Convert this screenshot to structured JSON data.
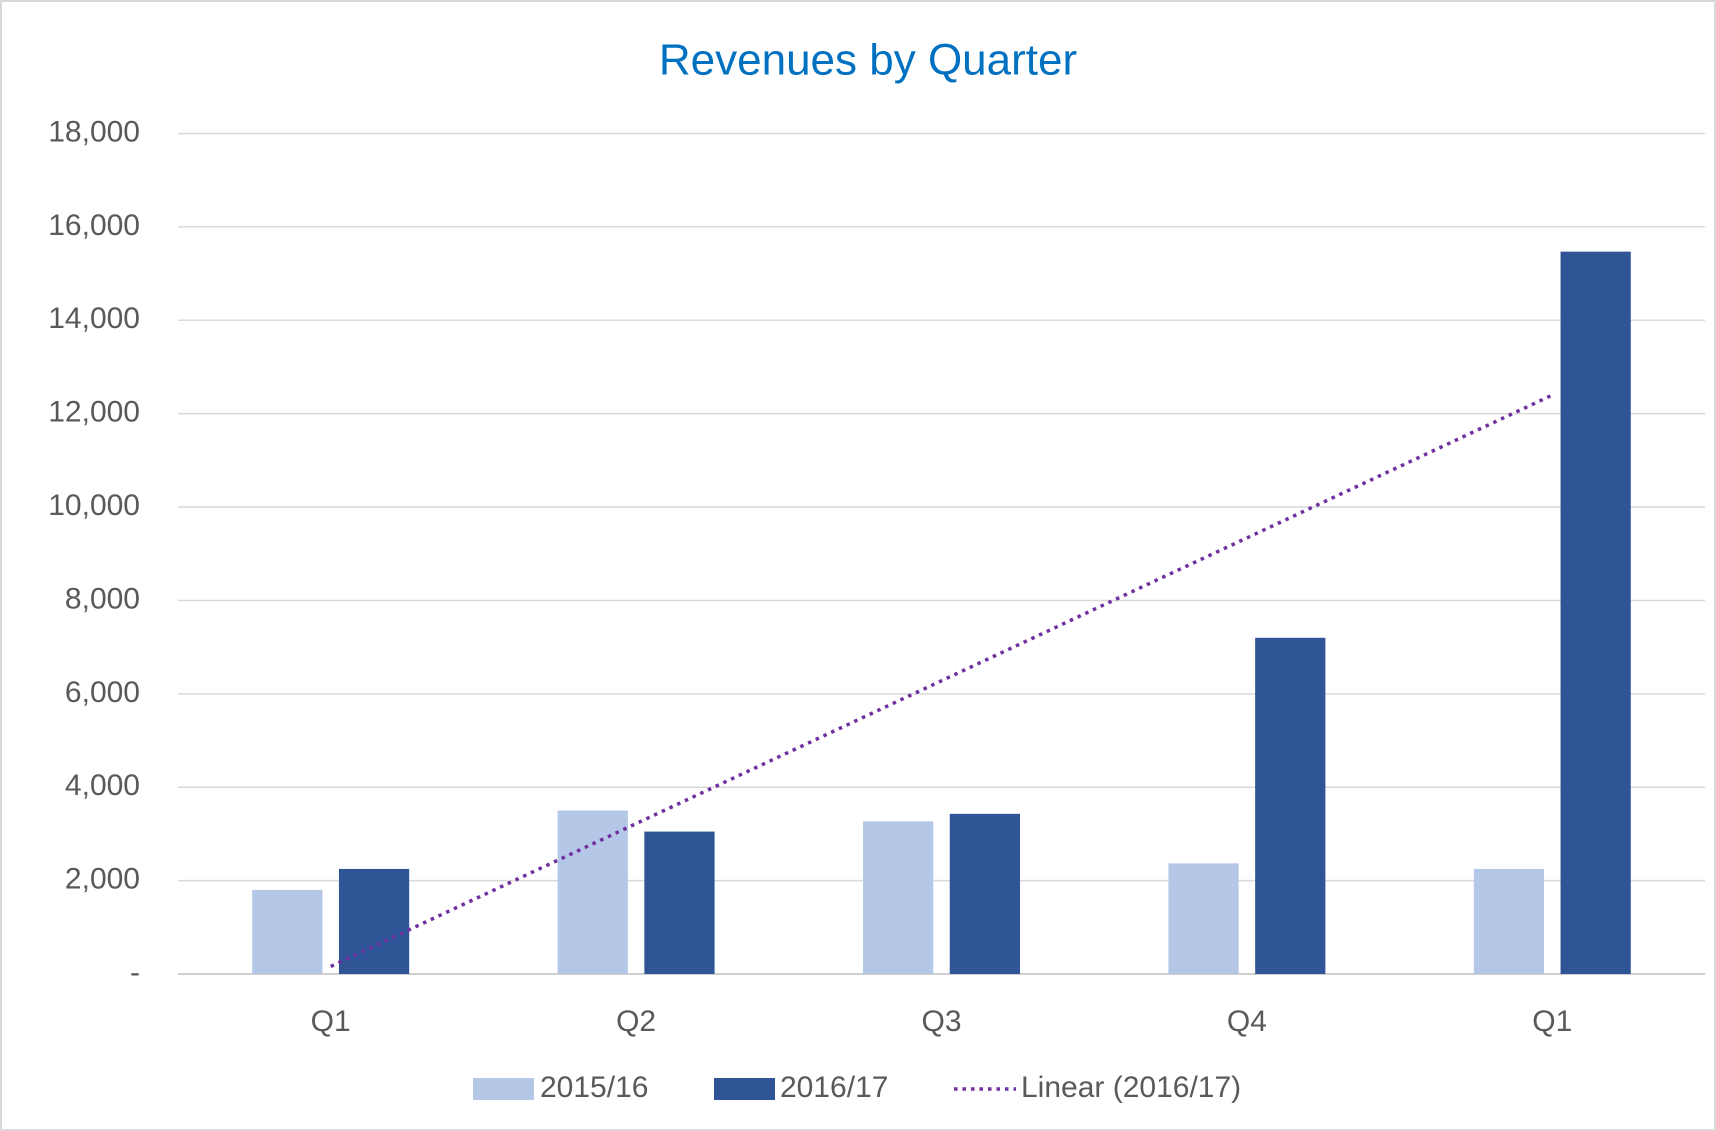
{
  "chart_data": {
    "type": "bar",
    "title": "Revenues by Quarter",
    "categories": [
      "Q1",
      "Q2",
      "Q3",
      "Q4",
      "Q1"
    ],
    "series": [
      {
        "name": "2015/16",
        "color": "#b4c7e7",
        "values": [
          1800,
          3500,
          3270,
          2370,
          2250
        ]
      },
      {
        "name": "2016/17",
        "color": "#2f5597",
        "values": [
          2250,
          3050,
          3430,
          7200,
          15470
        ]
      }
    ],
    "trendline": {
      "name": "Linear (2016/17)",
      "kind": "linear",
      "series": 1,
      "color": "#7030a0",
      "style": "dotted"
    },
    "ylim": [
      0,
      18000
    ],
    "yticks": [
      {
        "value": 0,
        "label": "-"
      },
      {
        "value": 2000,
        "label": "2,000"
      },
      {
        "value": 4000,
        "label": "4,000"
      },
      {
        "value": 6000,
        "label": "6,000"
      },
      {
        "value": 8000,
        "label": "8,000"
      },
      {
        "value": 10000,
        "label": "10,000"
      },
      {
        "value": 12000,
        "label": "12,000"
      },
      {
        "value": 14000,
        "label": "14,000"
      },
      {
        "value": 16000,
        "label": "16,000"
      },
      {
        "value": 18000,
        "label": "18,000"
      }
    ],
    "grid": true,
    "legend": "bottom"
  }
}
